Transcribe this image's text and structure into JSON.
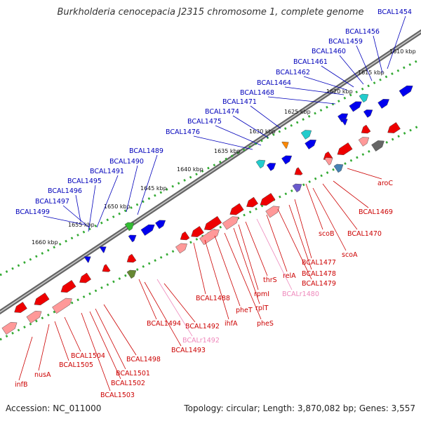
{
  "title": "Burkholderia cenocepacia J2315 chromosome 1, complete genome",
  "footer": {
    "accession": "Accession: NC_011000",
    "summary": "Topology: circular; Length: 3,870,082 bp; Genes: 3,557"
  },
  "colors": {
    "forward_label": "#0000bb",
    "reverse_label": "#cc0000",
    "rna_label": "#ee88bb",
    "forward_gene": "#0000ee",
    "reverse_gene": "#ee0000",
    "reverse_gene_light": "#ff9999",
    "backbone": "#777777",
    "tick": "#33aa33"
  },
  "kbp_ticks": [
    "1610 kbp",
    "1615 kbp",
    "1620 kbp",
    "1625 kbp",
    "1630 kbp",
    "1635 kbp",
    "1640 kbp",
    "1645 kbp",
    "1650 kbp",
    "1655 kbp",
    "1660 kbp"
  ],
  "forward_labels": [
    "BCAL1454",
    "BCAL1456",
    "BCAL1459",
    "BCAL1460",
    "BCAL1461",
    "BCAL1462",
    "BCAL1464",
    "BCAL1468",
    "BCAL1471",
    "BCAL1474",
    "BCAL1475",
    "BCAL1476",
    "BCAL1489",
    "BCAL1490",
    "BCAL1491",
    "BCAL1495",
    "BCAL1496",
    "BCAL1497",
    "BCAL1499"
  ],
  "reverse_labels": [
    "aroC",
    "BCAL1469",
    "BCAL1470",
    "scoA",
    "scoB",
    "BCAL1477",
    "BCAL1478",
    "BCAL1479",
    "relA",
    "BCALr1480",
    "thrS",
    "rpmI",
    "rplT",
    "pheS",
    "pheT",
    "ihfA",
    "BCAL1488",
    "BCAL1492",
    "BCALr1492",
    "BCAL1493",
    "BCAL1494",
    "BCAL1498",
    "BCAL1501",
    "BCAL1502",
    "BCAL1503",
    "BCAL1504",
    "BCAL1505",
    "nusA",
    "infB"
  ]
}
